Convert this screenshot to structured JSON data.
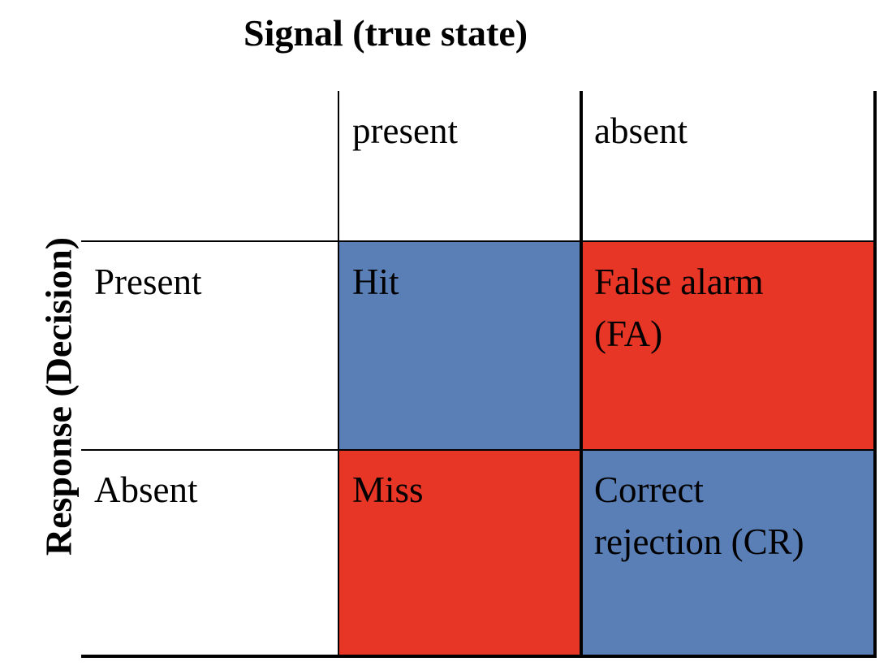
{
  "column_title": "Signal (true state)",
  "row_title": "Response (Decision)",
  "columns": [
    "present",
    "absent"
  ],
  "rows": [
    "Present",
    "Absent"
  ],
  "cells": {
    "hit": "Hit",
    "false_alarm_line1": "False alarm",
    "false_alarm_line2": "(FA)",
    "miss": "Miss",
    "correct_rejection_line1": "Correct",
    "correct_rejection_line2": "rejection (CR)"
  },
  "colors": {
    "blue": "#5a7fb7",
    "red": "#e73526"
  }
}
